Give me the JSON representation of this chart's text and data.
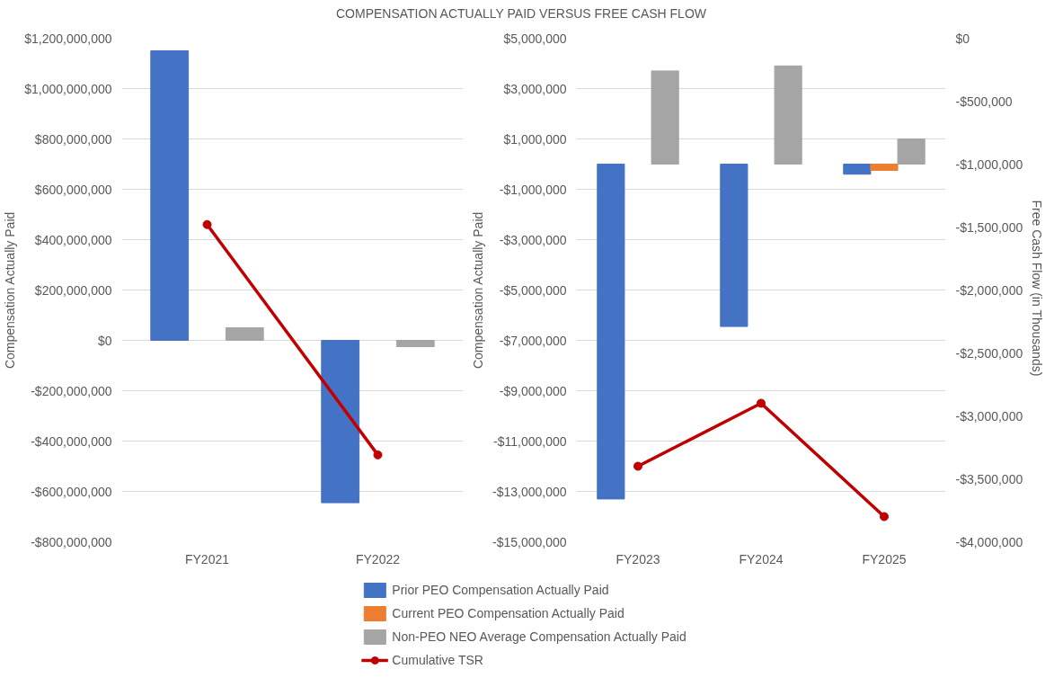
{
  "chart_data": [
    {
      "type": "bar",
      "title": "COMPENSATION ACTUALLY PAID VERSUS FREE CASH FLOW",
      "ylabel": "Compensation Actually Paid",
      "categories": [
        "FY2021",
        "FY2022"
      ],
      "ylim": [
        -800000000,
        1200000000
      ],
      "yticks": [
        {
          "value": -800000000,
          "label": "-$800,000,000"
        },
        {
          "value": -600000000,
          "label": "-$600,000,000"
        },
        {
          "value": -400000000,
          "label": "-$400,000,000"
        },
        {
          "value": -200000000,
          "label": "-$200,000,000"
        },
        {
          "value": 0,
          "label": "$0"
        },
        {
          "value": 200000000,
          "label": "$200,000,000"
        },
        {
          "value": 400000000,
          "label": "$400,000,000"
        },
        {
          "value": 600000000,
          "label": "$600,000,000"
        },
        {
          "value": 800000000,
          "label": "$800,000,000"
        },
        {
          "value": 1000000000,
          "label": "$1,000,000,000"
        },
        {
          "value": 1200000000,
          "label": "$1,200,000,000"
        }
      ],
      "grid": "y",
      "series": [
        {
          "color": "#4472c4",
          "values": [
            1150000000,
            -645000000
          ]
        },
        {
          "color": "#ed7d31",
          "values": [
            null,
            null
          ]
        },
        {
          "color": "#a5a5a5",
          "values": [
            50000000,
            -25000000
          ]
        },
        {
          "type": "line",
          "marker": "circle",
          "color": "#c00000",
          "values": [
            460000000,
            -455000000
          ]
        }
      ]
    },
    {
      "type": "bar",
      "ylabel": "Compensation Actually Paid",
      "y2label": "Free Cash Flow  (in Thousands)",
      "categories": [
        "FY2023",
        "FY2024",
        "FY2025"
      ],
      "ylim": [
        -15000000,
        5000000
      ],
      "yticks": [
        {
          "value": -15000000,
          "label": "-$15,000,000"
        },
        {
          "value": -13000000,
          "label": "-$13,000,000"
        },
        {
          "value": -11000000,
          "label": "-$11,000,000"
        },
        {
          "value": -9000000,
          "label": "-$9,000,000"
        },
        {
          "value": -7000000,
          "label": "-$7,000,000"
        },
        {
          "value": -5000000,
          "label": "-$5,000,000"
        },
        {
          "value": -3000000,
          "label": "-$3,000,000"
        },
        {
          "value": -1000000,
          "label": "-$1,000,000"
        },
        {
          "value": 1000000,
          "label": "$1,000,000"
        },
        {
          "value": 3000000,
          "label": "$3,000,000"
        },
        {
          "value": 5000000,
          "label": "$5,000,000"
        }
      ],
      "y2lim": [
        -4000000,
        0
      ],
      "y2ticks": [
        {
          "value": -4000000,
          "label": "-$4,000,000"
        },
        {
          "value": -3500000,
          "label": "-$3,500,000"
        },
        {
          "value": -3000000,
          "label": "-$3,000,000"
        },
        {
          "value": -2500000,
          "label": "-$2,500,000"
        },
        {
          "value": -2000000,
          "label": "-$2,000,000"
        },
        {
          "value": -1500000,
          "label": "-$1,500,000"
        },
        {
          "value": -1000000,
          "label": "-$1,000,000"
        },
        {
          "value": -500000,
          "label": "-$500,000"
        },
        {
          "value": 0,
          "label": "$0"
        }
      ],
      "grid": "y",
      "legend": "bottom",
      "series": [
        {
          "name": "Prior PEO Compensation Actually Paid",
          "color": "#4472c4",
          "values": [
            -13300000,
            -6450000,
            -400000
          ]
        },
        {
          "name": "Current PEO Compensation Actually Paid",
          "color": "#ed7d31",
          "values": [
            null,
            null,
            -250000
          ]
        },
        {
          "name": "Non-PEO NEO Average Compensation Actually Paid",
          "color": "#a5a5a5",
          "values": [
            3700000,
            3900000,
            1000000
          ]
        },
        {
          "name": "Cumulative TSR",
          "type": "line",
          "axis": "y2",
          "marker": "circle",
          "color": "#c00000",
          "values": [
            -3400000,
            -2900000,
            -3800000
          ]
        }
      ]
    }
  ]
}
